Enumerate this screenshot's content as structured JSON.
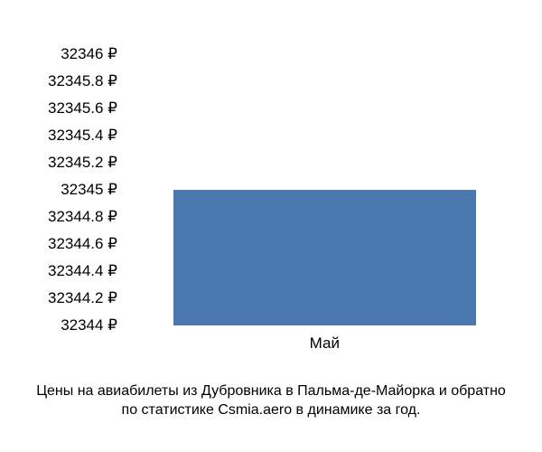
{
  "chart": {
    "type": "bar",
    "ymin": 32344,
    "ymax": 32346,
    "ytick_step": 0.2,
    "yticks": [
      "32346 ₽",
      "32345.8 ₽",
      "32345.6 ₽",
      "32345.4 ₽",
      "32345.2 ₽",
      "32345 ₽",
      "32344.8 ₽",
      "32344.6 ₽",
      "32344.4 ₽",
      "32344.2 ₽",
      "32344 ₽"
    ],
    "ytick_positions_pct": [
      0,
      10,
      20,
      30,
      40,
      50,
      60,
      70,
      80,
      90,
      100
    ],
    "bar": {
      "category": "Май",
      "value": 32345,
      "color": "#4a78af",
      "left_pct": 12,
      "width_pct": 78,
      "height_pct": 50
    },
    "background_color": "#ffffff",
    "text_color": "#000000",
    "tick_fontsize": 17,
    "caption_fontsize": 16
  },
  "caption": {
    "line1": "Цены на авиабилеты из Дубровника в Пальма-де-Майорка и обратно",
    "line2": "по статистике Csmia.aero в динамике за год."
  }
}
